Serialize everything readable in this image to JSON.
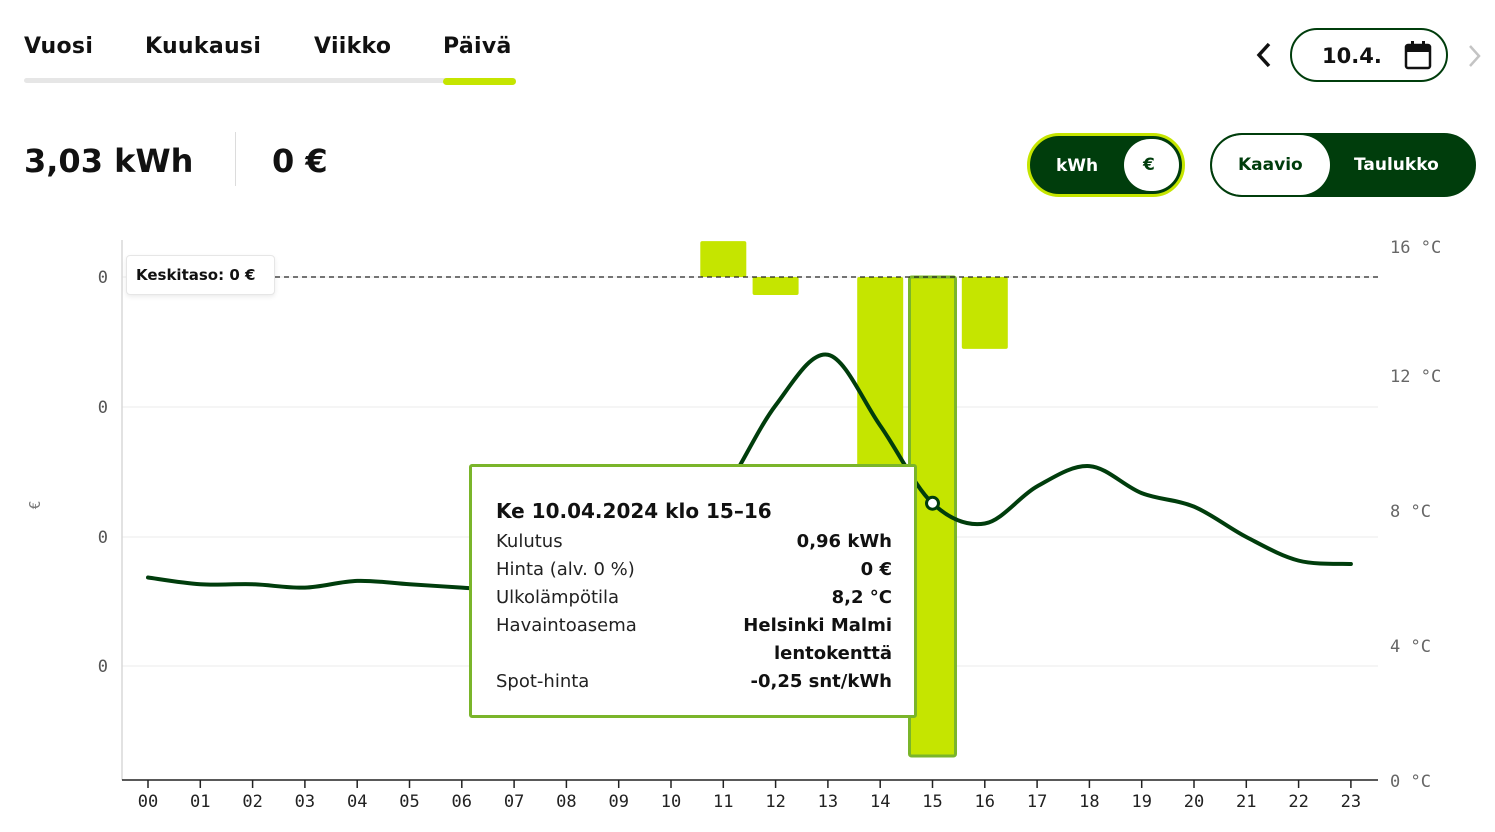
{
  "tabs": [
    {
      "label": "Vuosi"
    },
    {
      "label": "Kuukausi"
    },
    {
      "label": "Viikko"
    },
    {
      "label": "Päivä"
    }
  ],
  "active_tab": "Päivä",
  "date_picker": {
    "value": "10.4.",
    "prev_icon": "chevron-left-icon",
    "next_icon": "chevron-right-icon",
    "calendar_icon": "calendar-icon"
  },
  "summary": {
    "energy": "3,03 kWh",
    "cost": "0 €"
  },
  "unit_toggle": {
    "kwh": "kWh",
    "eur": "€",
    "selected": "€"
  },
  "view_toggle": {
    "chart": "Kaavio",
    "table": "Taulukko",
    "selected": "Kaavio"
  },
  "colors": {
    "brand_dark": "#003d0c",
    "accent": "#c5e500",
    "tooltip_border": "#7ab52a"
  },
  "average_label": "Keskitaso: 0 €",
  "tooltip": {
    "title": "Ke 10.04.2024 klo 15–16",
    "rows": [
      {
        "label": "Kulutus",
        "value": "0,96 kWh"
      },
      {
        "label": "Hinta (alv. 0 %)",
        "value": "0 €"
      },
      {
        "label": "Ulkolämpötila",
        "value": "8,2 °C"
      },
      {
        "label": "Havaintoasema",
        "value": "Helsinki Malmi",
        "value2": "lentokenttä"
      },
      {
        "label": "Spot-hinta",
        "value": "-0,25 snt/kWh"
      }
    ]
  },
  "chart_data": {
    "type": "bar",
    "title": "",
    "ylabel": "€",
    "left_ticks": [
      "0",
      "0",
      "0",
      "0"
    ],
    "right_ticks": [
      "16 °C",
      "12 °C",
      "8 °C",
      "4 °C",
      "0 °C"
    ],
    "right_ylim": [
      0,
      16
    ],
    "categories": [
      "00",
      "01",
      "02",
      "03",
      "04",
      "05",
      "06",
      "07",
      "08",
      "09",
      "10",
      "11",
      "12",
      "13",
      "14",
      "15",
      "16",
      "17",
      "18",
      "19",
      "20",
      "21",
      "22",
      "23"
    ],
    "cost_bars": [
      {
        "hour": "11",
        "value": 0.03
      },
      {
        "hour": "12",
        "value": -0.015
      },
      {
        "hour": "14",
        "value": -0.3
      },
      {
        "hour": "15",
        "value": -0.4
      },
      {
        "hour": "16",
        "value": -0.06
      }
    ],
    "bars_note_scale": 0.0,
    "temperature_series": {
      "name": "",
      "unit": "°C",
      "x": [
        0,
        1,
        2,
        3,
        4,
        5,
        6,
        7,
        8,
        9,
        10,
        11,
        12,
        13,
        14,
        15,
        16,
        17,
        18,
        19,
        20,
        21,
        22,
        23
      ],
      "values": [
        6.0,
        5.8,
        5.8,
        5.7,
        5.9,
        5.8,
        5.7,
        5.6,
        5.6,
        5.7,
        6.5,
        8.5,
        11.1,
        12.6,
        10.5,
        8.2,
        7.6,
        8.7,
        9.3,
        8.5,
        8.1,
        7.2,
        6.5,
        6.4
      ]
    },
    "hover_hour": "15",
    "average_line": 0,
    "grid": true
  }
}
